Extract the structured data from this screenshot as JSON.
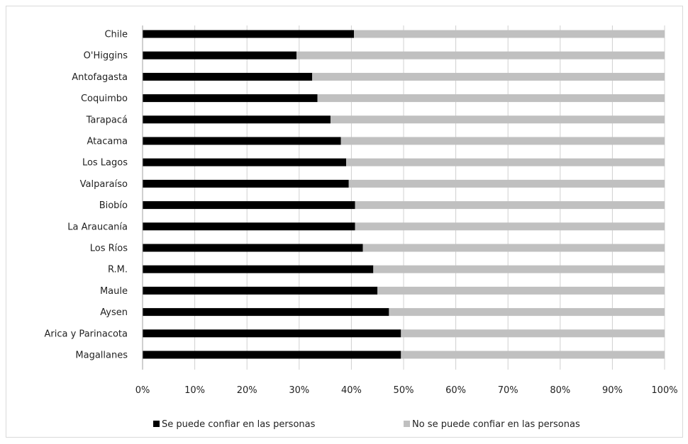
{
  "chart_data": {
    "type": "bar",
    "orientation": "horizontal",
    "stacked": "percent",
    "categories": [
      "Chile",
      "O'Higgins",
      "Antofagasta",
      "Coquimbo",
      "Tarapacá",
      "Atacama",
      "Los Lagos",
      "Valparaíso",
      "Biobío",
      "La Araucanía",
      "Los Ríos",
      "R.M.",
      "Maule",
      "Aysen",
      "Arica y Parinacota",
      "Magallanes"
    ],
    "series": [
      {
        "name": "Se puede confiar en las personas",
        "color": "#000000",
        "values": [
          40.5,
          29.5,
          32.5,
          33.5,
          36,
          38,
          39,
          39.5,
          40.7,
          40.7,
          42.2,
          44.2,
          45,
          47.2,
          49.5,
          49.5
        ]
      },
      {
        "name": "No se puede confiar en las personas",
        "color": "#c0c0c0",
        "values": [
          59.5,
          70.5,
          67.5,
          66.5,
          64,
          62,
          61,
          60.5,
          59.3,
          59.3,
          57.8,
          55.8,
          55,
          52.8,
          50.5,
          50.5
        ]
      }
    ],
    "xlim": [
      0,
      100
    ],
    "x_ticks": [
      "0%",
      "10%",
      "20%",
      "30%",
      "40%",
      "50%",
      "60%",
      "70%",
      "80%",
      "90%",
      "100%"
    ],
    "grid": "vertical",
    "legend_position": "bottom",
    "title": "",
    "xlabel": "",
    "ylabel": ""
  }
}
